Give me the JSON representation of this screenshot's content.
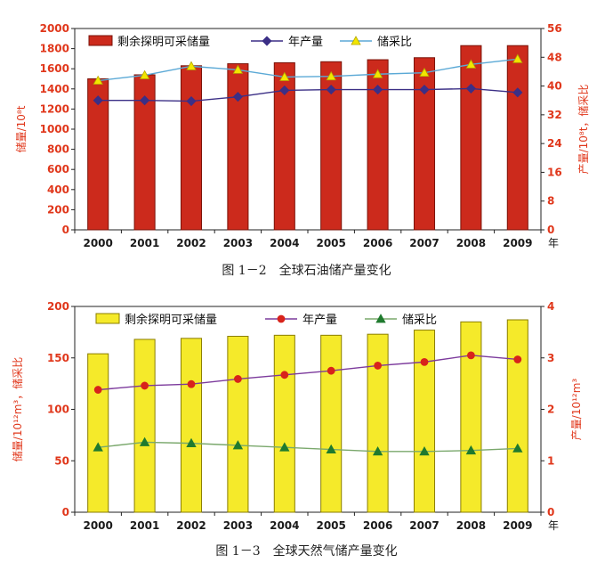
{
  "figures": [
    {
      "caption": "图 1－2　全球石油储产量变化",
      "year_unit": "年",
      "left_axis_label": "储量/10⁸t",
      "right_axis_label": "产量/10⁸t，储采比",
      "colors": {
        "bar": "#cc2a1c",
        "bar_stroke": "#7a1208",
        "production": "#3b2f86",
        "ratio_line": "#5ba9d6",
        "ratio_marker": "#f2e600",
        "axis_text": "#e0371b",
        "tick_text": "#1a1a1a"
      },
      "chart_data": {
        "type": "bar",
        "categories": [
          "2000",
          "2001",
          "2002",
          "2003",
          "2004",
          "2005",
          "2006",
          "2007",
          "2008",
          "2009"
        ],
        "ylim": [
          0,
          2000
        ],
        "y2lim": [
          0,
          56
        ],
        "yticks": [
          0,
          200,
          400,
          600,
          800,
          1000,
          1200,
          1400,
          1600,
          1800,
          2000
        ],
        "y2ticks": [
          0,
          8,
          16,
          24,
          32,
          40,
          48,
          56
        ],
        "ylabel": "储量/10⁸t",
        "y2label": "产量/10⁸t，储采比",
        "legend_position": "top",
        "series": [
          {
            "name": "剩余探明可采储量",
            "type": "bar",
            "axis": "left",
            "values": [
              1500,
              1540,
              1630,
              1650,
              1660,
              1670,
              1690,
              1710,
              1830,
              1830
            ]
          },
          {
            "name": "年产量",
            "type": "line",
            "axis": "right",
            "marker": "diamond",
            "values": [
              36,
              36,
              35.8,
              37,
              38.8,
              39,
              39,
              39,
              39.3,
              38.2
            ]
          },
          {
            "name": "储采比",
            "type": "line",
            "axis": "right",
            "marker": "triangle",
            "values": [
              41.5,
              43,
              45.5,
              44.5,
              42.5,
              42.7,
              43.3,
              43.7,
              46,
              47.5
            ]
          }
        ]
      }
    },
    {
      "caption": "图 1－3　全球天然气储产量变化",
      "year_unit": "年",
      "left_axis_label": "储量/10¹²m³，储采比",
      "right_axis_label": "产量/10¹²m³",
      "colors": {
        "bar": "#f5ea2a",
        "bar_stroke": "#8a7d00",
        "production": "#d8231b",
        "production_line": "#7c3a9c",
        "ratio_line": "#7aa86c",
        "ratio_marker": "#1f7a2e",
        "axis_text": "#e0371b",
        "tick_text": "#1a1a1a"
      },
      "chart_data": {
        "type": "bar",
        "categories": [
          "2000",
          "2001",
          "2002",
          "2003",
          "2004",
          "2005",
          "2006",
          "2007",
          "2008",
          "2009"
        ],
        "ylim": [
          0,
          200
        ],
        "y2lim": [
          0,
          4
        ],
        "yticks": [
          0,
          50,
          100,
          150,
          200
        ],
        "y2ticks": [
          0,
          1,
          2,
          3,
          4
        ],
        "ylabel": "储量/10¹²m³，储采比",
        "y2label": "产量/10¹²m³",
        "legend_position": "top",
        "series": [
          {
            "name": "剩余探明可采储量",
            "type": "bar",
            "axis": "left",
            "values": [
              154,
              168,
              169,
              171,
              172,
              172,
              173,
              177,
              185,
              187
            ]
          },
          {
            "name": "年产量",
            "type": "line",
            "axis": "right",
            "marker": "circle",
            "values": [
              2.38,
              2.46,
              2.49,
              2.59,
              2.67,
              2.75,
              2.85,
              2.92,
              3.05,
              2.97
            ]
          },
          {
            "name": "储采比",
            "type": "line",
            "axis": "left",
            "marker": "triangle",
            "values": [
              63,
              68,
              67,
              65,
              63,
              61,
              59,
              59,
              60,
              62
            ]
          }
        ]
      }
    }
  ]
}
